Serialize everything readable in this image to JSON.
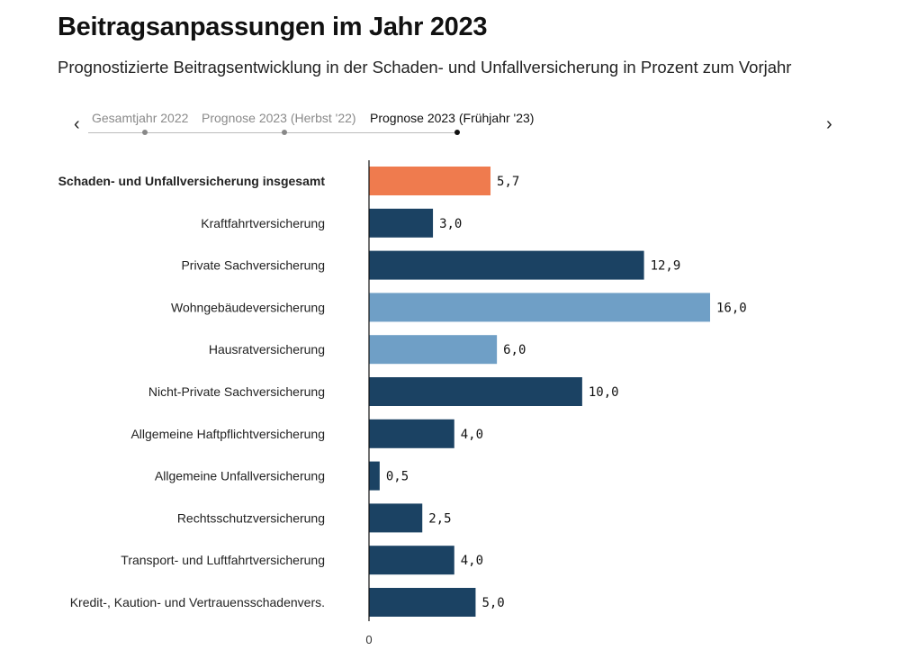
{
  "header": {
    "title": "Beitragsanpassungen im Jahr 2023",
    "subtitle": "Prognostizierte Beitragsentwicklung in der Schaden- und Unfallversicherung in Prozent zum Vorjahr"
  },
  "nav": {
    "prev_symbol": "‹",
    "next_symbol": "›",
    "steps": [
      {
        "label": "Gesamtjahr 2022",
        "active": false
      },
      {
        "label": "Prognose 2023 (Herbst '22)",
        "active": false
      },
      {
        "label": "Prognose 2023 (Frühjahr '23)",
        "active": true
      }
    ]
  },
  "colors": {
    "highlight": "#ef7b4e",
    "dark": "#1b4263",
    "light": "#6f9fc6"
  },
  "chart_data": {
    "type": "bar",
    "orientation": "horizontal",
    "categories": [
      "Schaden- und Unfallversicherung insgesamt",
      "Kraftfahrtversicherung",
      "Private Sachversicherung",
      "Wohngebäudeversicherung",
      "Hausratversicherung",
      "Nicht-Private Sachversicherung",
      "Allgemeine Haftpflichtversicherung",
      "Allgemeine Unfallversicherung",
      "Rechtsschutzversicherung",
      "Transport- und Luftfahrtversicherung",
      "Kredit-, Kaution- und Vertrauensschadenvers."
    ],
    "values": [
      5.7,
      3.0,
      12.9,
      16.0,
      6.0,
      10.0,
      4.0,
      0.5,
      2.5,
      4.0,
      5.0
    ],
    "value_labels": [
      "5,7",
      "3,0",
      "12,9",
      "16,0",
      "6,0",
      "10,0",
      "4,0",
      "0,5",
      "2,5",
      "4,0",
      "5,0"
    ],
    "bar_colors": [
      "highlight",
      "dark",
      "dark",
      "light",
      "light",
      "dark",
      "dark",
      "dark",
      "dark",
      "dark",
      "dark"
    ],
    "bold_categories": [
      0
    ],
    "x_ticks": [
      "0"
    ],
    "xlim": [
      0,
      16.0
    ],
    "grid": false
  }
}
